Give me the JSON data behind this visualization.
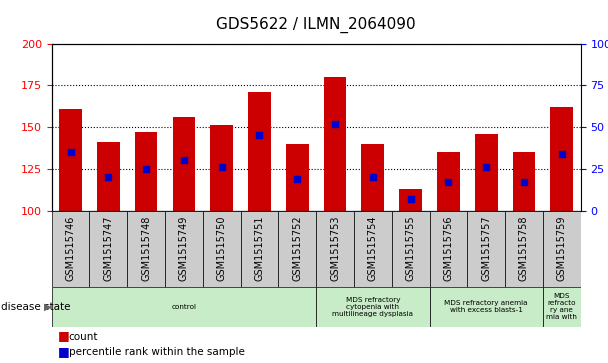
{
  "title": "GDS5622 / ILMN_2064090",
  "samples": [
    "GSM1515746",
    "GSM1515747",
    "GSM1515748",
    "GSM1515749",
    "GSM1515750",
    "GSM1515751",
    "GSM1515752",
    "GSM1515753",
    "GSM1515754",
    "GSM1515755",
    "GSM1515756",
    "GSM1515757",
    "GSM1515758",
    "GSM1515759"
  ],
  "counts": [
    161,
    141,
    147,
    156,
    151,
    171,
    140,
    180,
    140,
    113,
    135,
    146,
    135,
    162
  ],
  "percentile_values": [
    135,
    120,
    125,
    130,
    126,
    145,
    119,
    152,
    120,
    107,
    117,
    126,
    117,
    134
  ],
  "ylim": [
    100,
    200
  ],
  "y2lim": [
    0,
    100
  ],
  "yticks": [
    100,
    125,
    150,
    175,
    200
  ],
  "y2ticks": [
    0,
    25,
    50,
    75,
    100
  ],
  "bar_color": "#cc0000",
  "dot_color": "#0000cc",
  "bar_width": 0.6,
  "disease_groups": [
    {
      "label": "control",
      "start": 0,
      "end": 7
    },
    {
      "label": "MDS refractory\ncytopenia with\nmultilineage dysplasia",
      "start": 7,
      "end": 10
    },
    {
      "label": "MDS refractory anemia\nwith excess blasts-1",
      "start": 10,
      "end": 13
    },
    {
      "label": "MDS\nrefracto\nry ane\nmia with",
      "start": 13,
      "end": 14
    }
  ],
  "disease_group_color": "#c8ebc8",
  "legend_count_label": "count",
  "legend_percentile_label": "percentile rank within the sample",
  "disease_state_label": "disease state",
  "tick_bg_color": "#cccccc"
}
